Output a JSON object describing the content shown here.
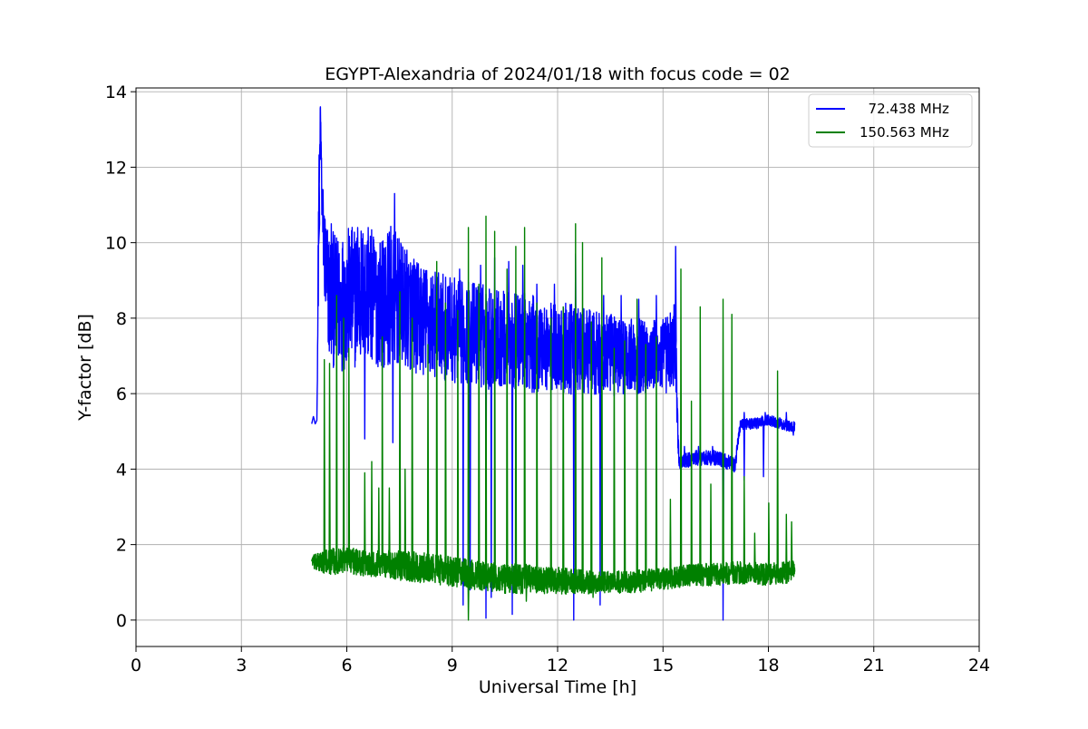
{
  "chart_data": {
    "type": "line",
    "title": "EGYPT-Alexandria of 2024/01/18 with focus code = 02",
    "xlabel": "Universal Time [h]",
    "ylabel": "Y-factor [dB]",
    "xlim": [
      0,
      24
    ],
    "ylim": [
      -0.7,
      14.1
    ],
    "xticks": [
      0,
      3,
      6,
      9,
      12,
      15,
      18,
      21,
      24
    ],
    "yticks": [
      0,
      2,
      4,
      6,
      8,
      10,
      12,
      14
    ],
    "grid": true,
    "legend_position": "top-right",
    "series": [
      {
        "name": "  72.438 MHz",
        "color": "#0000ff",
        "x": [
          5.0,
          5.05,
          5.1,
          5.15,
          5.2,
          5.25,
          5.3,
          5.4,
          5.5,
          5.7,
          6.0,
          6.3,
          6.5,
          6.8,
          7.0,
          7.2,
          7.4,
          7.6,
          7.8,
          8.0,
          8.3,
          8.6,
          9.0,
          9.3,
          9.6,
          10.0,
          10.3,
          10.6,
          11.0,
          11.3,
          11.6,
          12.0,
          12.3,
          12.6,
          13.0,
          13.3,
          13.6,
          14.0,
          14.3,
          14.6,
          15.0,
          15.2,
          15.35,
          15.45,
          15.6,
          15.9,
          16.2,
          16.5,
          16.8,
          17.05,
          17.2,
          17.6,
          18.0,
          18.4,
          18.75
        ],
        "y": [
          5.2,
          5.4,
          5.2,
          5.3,
          10.5,
          13.4,
          10.8,
          9.2,
          8.6,
          8.4,
          8.5,
          8.6,
          8.7,
          8.5,
          8.4,
          8.6,
          8.5,
          8.3,
          8.2,
          8.0,
          7.9,
          7.8,
          7.7,
          7.6,
          7.6,
          7.5,
          7.5,
          7.4,
          7.4,
          7.3,
          7.3,
          7.2,
          7.2,
          7.1,
          7.1,
          7.0,
          7.0,
          7.0,
          7.0,
          7.0,
          7.0,
          7.1,
          7.4,
          4.2,
          4.2,
          4.3,
          4.3,
          4.3,
          4.2,
          4.1,
          5.2,
          5.2,
          5.3,
          5.2,
          5.1
        ],
        "band": [
          0,
          0,
          0,
          0,
          1.5,
          0.5,
          1.0,
          1.6,
          1.8,
          1.8,
          1.9,
          1.9,
          1.8,
          1.8,
          1.7,
          1.9,
          1.8,
          1.6,
          1.6,
          1.5,
          1.5,
          1.4,
          1.4,
          1.4,
          1.4,
          1.4,
          1.3,
          1.3,
          1.3,
          1.3,
          1.2,
          1.2,
          1.2,
          1.2,
          1.1,
          1.1,
          1.1,
          1.0,
          1.0,
          1.0,
          1.0,
          1.1,
          1.2,
          0.25,
          0.2,
          0.2,
          0.2,
          0.2,
          0.2,
          0.2,
          0.15,
          0.15,
          0.15,
          0.15,
          0.15
        ],
        "spikes_up": [
          [
            5.2,
            12.3
          ],
          [
            5.55,
            10.5
          ],
          [
            6.3,
            10.4
          ],
          [
            6.6,
            10.4
          ],
          [
            7.35,
            11.3
          ],
          [
            7.7,
            9.8
          ],
          [
            8.1,
            9.3
          ],
          [
            8.6,
            9.2
          ],
          [
            9.2,
            9.3
          ],
          [
            9.8,
            9.4
          ],
          [
            10.2,
            9.6
          ],
          [
            10.6,
            9.5
          ],
          [
            11.0,
            9.4
          ],
          [
            11.4,
            8.9
          ],
          [
            11.9,
            8.9
          ],
          [
            12.5,
            9.7
          ],
          [
            13.3,
            8.6
          ],
          [
            13.8,
            8.6
          ],
          [
            14.3,
            8.5
          ],
          [
            14.8,
            8.6
          ],
          [
            15.35,
            9.9
          ],
          [
            15.6,
            4.6
          ],
          [
            16.0,
            4.6
          ],
          [
            16.4,
            4.6
          ],
          [
            17.3,
            5.5
          ],
          [
            17.9,
            5.5
          ],
          [
            18.5,
            5.5
          ]
        ],
        "spikes_down": [
          [
            6.5,
            4.8
          ],
          [
            7.3,
            4.7
          ],
          [
            9.3,
            0.4
          ],
          [
            9.5,
            0.8
          ],
          [
            9.95,
            0.05
          ],
          [
            10.1,
            0.6
          ],
          [
            10.7,
            0.15
          ],
          [
            12.45,
            0.0
          ],
          [
            13.2,
            0.4
          ],
          [
            16.7,
            0.0
          ],
          [
            17.3,
            3.7
          ],
          [
            17.85,
            3.8
          ],
          [
            18.7,
            4.9
          ]
        ]
      },
      {
        "name": "150.563 MHz",
        "color": "#008000",
        "x": [
          5.0,
          5.1,
          5.3,
          5.6,
          6.0,
          6.5,
          7.0,
          7.5,
          8.0,
          8.5,
          9.0,
          9.5,
          10.0,
          10.5,
          11.0,
          11.5,
          12.0,
          12.5,
          13.0,
          13.5,
          14.0,
          14.5,
          15.0,
          15.5,
          16.0,
          16.5,
          17.0,
          17.5,
          18.0,
          18.5,
          18.75
        ],
        "y": [
          1.6,
          1.5,
          1.55,
          1.55,
          1.6,
          1.5,
          1.5,
          1.45,
          1.4,
          1.35,
          1.3,
          1.2,
          1.15,
          1.1,
          1.1,
          1.05,
          1.05,
          1.0,
          1.0,
          1.0,
          1.0,
          1.05,
          1.1,
          1.15,
          1.2,
          1.2,
          1.25,
          1.25,
          1.2,
          1.25,
          1.3
        ],
        "band": [
          0.1,
          0.25,
          0.3,
          0.35,
          0.35,
          0.35,
          0.35,
          0.4,
          0.4,
          0.4,
          0.4,
          0.4,
          0.4,
          0.4,
          0.4,
          0.35,
          0.35,
          0.35,
          0.3,
          0.3,
          0.3,
          0.3,
          0.3,
          0.3,
          0.3,
          0.3,
          0.3,
          0.3,
          0.3,
          0.3,
          0.3
        ],
        "spikes_up": [
          [
            5.35,
            6.9
          ],
          [
            5.5,
            6.8
          ],
          [
            5.7,
            8.6
          ],
          [
            5.9,
            8.0
          ],
          [
            6.05,
            7.2
          ],
          [
            6.5,
            3.9
          ],
          [
            6.7,
            4.2
          ],
          [
            6.9,
            3.5
          ],
          [
            7.0,
            7.5
          ],
          [
            7.2,
            3.5
          ],
          [
            7.5,
            8.7
          ],
          [
            7.65,
            4.0
          ],
          [
            7.85,
            8.0
          ],
          [
            8.3,
            7.3
          ],
          [
            8.55,
            9.5
          ],
          [
            8.8,
            8.4
          ],
          [
            9.15,
            8.2
          ],
          [
            9.45,
            10.4
          ],
          [
            9.75,
            8.9
          ],
          [
            9.95,
            10.7
          ],
          [
            10.2,
            10.3
          ],
          [
            10.55,
            9.3
          ],
          [
            10.8,
            9.9
          ],
          [
            11.05,
            10.4
          ],
          [
            11.4,
            8.4
          ],
          [
            11.8,
            8.0
          ],
          [
            12.15,
            8.3
          ],
          [
            12.5,
            10.5
          ],
          [
            12.7,
            10.0
          ],
          [
            12.95,
            7.9
          ],
          [
            13.25,
            9.6
          ],
          [
            13.6,
            7.2
          ],
          [
            13.9,
            7.4
          ],
          [
            14.25,
            8.5
          ],
          [
            14.5,
            7.3
          ],
          [
            14.8,
            7.5
          ],
          [
            15.2,
            3.2
          ],
          [
            15.5,
            9.3
          ],
          [
            15.8,
            5.8
          ],
          [
            16.05,
            8.3
          ],
          [
            16.35,
            3.6
          ],
          [
            16.7,
            8.5
          ],
          [
            16.95,
            8.1
          ],
          [
            17.3,
            3.8
          ],
          [
            17.6,
            2.3
          ],
          [
            18.0,
            3.1
          ],
          [
            18.25,
            6.6
          ],
          [
            18.5,
            2.8
          ],
          [
            18.65,
            2.6
          ]
        ],
        "spikes_down": [
          [
            9.45,
            0.0
          ],
          [
            11.1,
            0.5
          ],
          [
            13.0,
            0.6
          ]
        ]
      }
    ]
  }
}
